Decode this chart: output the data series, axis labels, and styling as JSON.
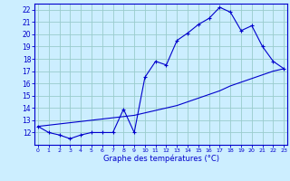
{
  "bg_color": "#cceeff",
  "grid_color": "#99cccc",
  "line_color": "#0000cc",
  "line1_y": [
    12.5,
    12.0,
    11.8,
    11.5,
    11.8,
    12.0,
    12.0,
    12.0,
    13.9,
    12.0,
    16.5,
    17.8,
    17.5,
    19.5,
    20.1,
    20.8,
    21.3,
    22.2,
    21.8,
    20.3,
    20.7,
    19.0,
    17.8,
    17.2
  ],
  "line2_y": [
    12.5,
    12.6,
    12.7,
    12.8,
    12.9,
    13.0,
    13.1,
    13.2,
    13.3,
    13.4,
    13.6,
    13.8,
    14.0,
    14.2,
    14.5,
    14.8,
    15.1,
    15.4,
    15.8,
    16.1,
    16.4,
    16.7,
    17.0,
    17.2
  ],
  "xlim": [
    0,
    23
  ],
  "ylim": [
    11.0,
    22.5
  ],
  "ytick_labels": [
    "12",
    "13",
    "14",
    "15",
    "16",
    "17",
    "18",
    "19",
    "20",
    "21",
    "22"
  ],
  "ytick_vals": [
    12,
    13,
    14,
    15,
    16,
    17,
    18,
    19,
    20,
    21,
    22
  ],
  "xtick_labels": [
    "0",
    "1",
    "2",
    "3",
    "4",
    "5",
    "6",
    "7",
    "8",
    "9",
    "10",
    "11",
    "12",
    "13",
    "14",
    "15",
    "16",
    "17",
    "18",
    "19",
    "20",
    "21",
    "22",
    "23"
  ],
  "xtick_vals": [
    0,
    1,
    2,
    3,
    4,
    5,
    6,
    7,
    8,
    9,
    10,
    11,
    12,
    13,
    14,
    15,
    16,
    17,
    18,
    19,
    20,
    21,
    22,
    23
  ],
  "xlabel": "Graphe des températures (°C)"
}
